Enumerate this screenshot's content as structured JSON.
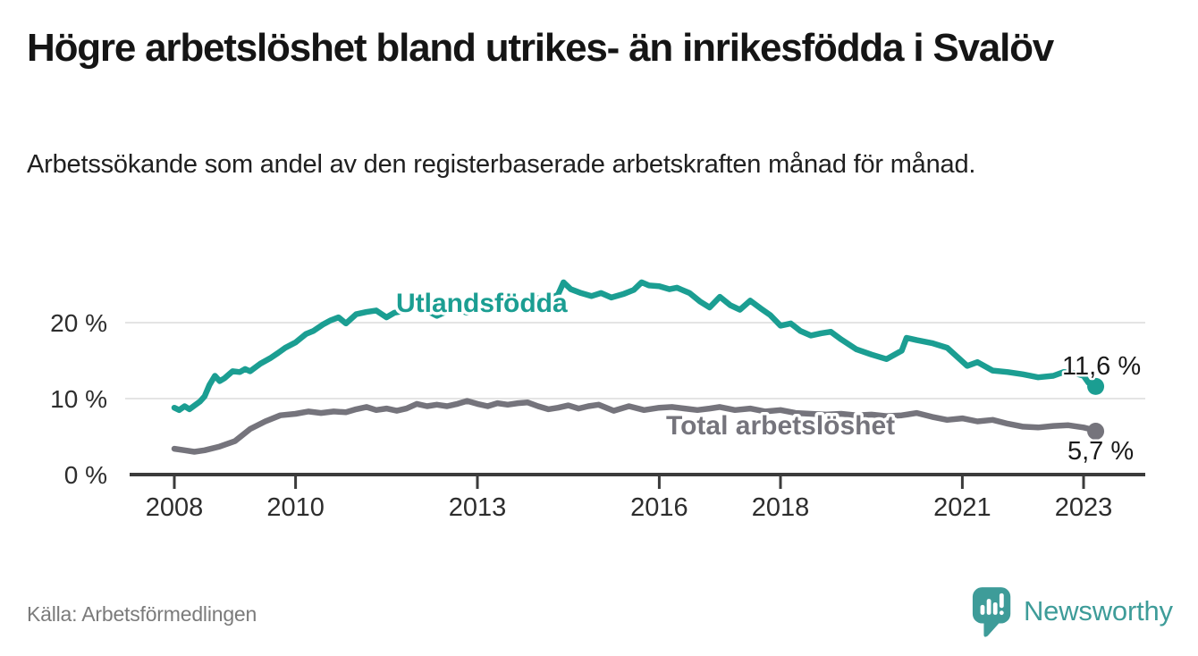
{
  "header": {
    "title": "Högre arbetslöshet bland utrikes- än inrikesfödda i Svalöv",
    "subtitle": "Arbetssökande som andel av den registerbaserade arbetskraften månad för månad."
  },
  "footer": {
    "source": "Källa: Arbetsförmedlingen",
    "brand_name": "Newsworthy",
    "brand_icon": "newsworthy-speech-bubble-bar-chart-icon"
  },
  "colors": {
    "foreign_series": "#1b9e92",
    "total_series": "#75747c",
    "axis": "#3b3b3b",
    "grid": "#e4e4e4",
    "tick_label": "#2d2d2d",
    "value_label": "#1a1a1a",
    "brand": "#3e9c99"
  },
  "chart_data": {
    "type": "line",
    "title": "Högre arbetslöshet bland utrikes- än inrikesfödda i Svalöv",
    "subtitle": "Arbetssökande som andel av den registerbaserade arbetskraften månad för månad.",
    "xlabel": "",
    "ylabel": "",
    "x_range": [
      2007.3,
      2024.0
    ],
    "ylim": [
      0,
      27
    ],
    "grid": "horizontal",
    "legend_position": "inline-labels",
    "x_axis": {
      "ticks": [
        {
          "value": 2008,
          "label": "2008"
        },
        {
          "value": 2010,
          "label": "2010"
        },
        {
          "value": 2013,
          "label": "2013"
        },
        {
          "value": 2016,
          "label": "2016"
        },
        {
          "value": 2018,
          "label": "2018"
        },
        {
          "value": 2021,
          "label": "2021"
        },
        {
          "value": 2023,
          "label": "2023"
        }
      ]
    },
    "y_axis": {
      "ticks": [
        {
          "value": 0,
          "label": "0 %"
        },
        {
          "value": 10,
          "label": "10 %"
        },
        {
          "value": 20,
          "label": "20 %"
        }
      ]
    },
    "series": [
      {
        "id": "total",
        "name": "Total arbetslöshet",
        "color_key": "total_series",
        "end_label": "5,7 %",
        "end_value": 5.7,
        "points": [
          [
            2008.0,
            3.4
          ],
          [
            2008.17,
            3.2
          ],
          [
            2008.33,
            3.0
          ],
          [
            2008.5,
            3.2
          ],
          [
            2008.75,
            3.7
          ],
          [
            2009.0,
            4.4
          ],
          [
            2009.25,
            6.0
          ],
          [
            2009.5,
            7.0
          ],
          [
            2009.75,
            7.8
          ],
          [
            2010.0,
            8.0
          ],
          [
            2010.21,
            8.3
          ],
          [
            2010.42,
            8.1
          ],
          [
            2010.63,
            8.3
          ],
          [
            2010.83,
            8.2
          ],
          [
            2011.0,
            8.6
          ],
          [
            2011.17,
            8.9
          ],
          [
            2011.33,
            8.5
          ],
          [
            2011.5,
            8.7
          ],
          [
            2011.67,
            8.4
          ],
          [
            2011.83,
            8.7
          ],
          [
            2012.0,
            9.3
          ],
          [
            2012.17,
            9.0
          ],
          [
            2012.33,
            9.2
          ],
          [
            2012.5,
            9.0
          ],
          [
            2012.67,
            9.3
          ],
          [
            2012.83,
            9.7
          ],
          [
            2013.0,
            9.3
          ],
          [
            2013.17,
            9.0
          ],
          [
            2013.33,
            9.4
          ],
          [
            2013.5,
            9.2
          ],
          [
            2013.67,
            9.4
          ],
          [
            2013.83,
            9.5
          ],
          [
            2014.0,
            9.0
          ],
          [
            2014.17,
            8.6
          ],
          [
            2014.33,
            8.8
          ],
          [
            2014.5,
            9.1
          ],
          [
            2014.67,
            8.7
          ],
          [
            2014.83,
            9.0
          ],
          [
            2015.0,
            9.2
          ],
          [
            2015.25,
            8.4
          ],
          [
            2015.5,
            9.0
          ],
          [
            2015.75,
            8.5
          ],
          [
            2016.0,
            8.8
          ],
          [
            2016.21,
            8.9
          ],
          [
            2016.42,
            8.7
          ],
          [
            2016.63,
            8.5
          ],
          [
            2016.83,
            8.7
          ],
          [
            2017.0,
            8.9
          ],
          [
            2017.25,
            8.5
          ],
          [
            2017.5,
            8.7
          ],
          [
            2017.75,
            8.3
          ],
          [
            2018.0,
            8.5
          ],
          [
            2018.25,
            8.1
          ],
          [
            2018.5,
            8.0
          ],
          [
            2018.75,
            7.9
          ],
          [
            2019.0,
            8.0
          ],
          [
            2019.25,
            7.8
          ],
          [
            2019.5,
            7.9
          ],
          [
            2019.75,
            7.7
          ],
          [
            2020.0,
            7.8
          ],
          [
            2020.25,
            8.1
          ],
          [
            2020.5,
            7.6
          ],
          [
            2020.75,
            7.2
          ],
          [
            2021.0,
            7.4
          ],
          [
            2021.25,
            7.0
          ],
          [
            2021.5,
            7.2
          ],
          [
            2021.75,
            6.7
          ],
          [
            2022.0,
            6.3
          ],
          [
            2022.25,
            6.2
          ],
          [
            2022.5,
            6.4
          ],
          [
            2022.75,
            6.5
          ],
          [
            2023.0,
            6.2
          ],
          [
            2023.1,
            6.0
          ],
          [
            2023.2,
            5.7
          ]
        ]
      },
      {
        "id": "utlandsfodda",
        "name": "Utlandsfödda",
        "color_key": "foreign_series",
        "end_label": "11,6 %",
        "end_value": 11.6,
        "points": [
          [
            2008.0,
            8.8
          ],
          [
            2008.08,
            8.5
          ],
          [
            2008.17,
            9.0
          ],
          [
            2008.25,
            8.6
          ],
          [
            2008.42,
            9.6
          ],
          [
            2008.5,
            10.3
          ],
          [
            2008.58,
            11.8
          ],
          [
            2008.67,
            13.0
          ],
          [
            2008.75,
            12.3
          ],
          [
            2008.83,
            12.7
          ],
          [
            2008.96,
            13.6
          ],
          [
            2009.08,
            13.5
          ],
          [
            2009.17,
            13.9
          ],
          [
            2009.25,
            13.6
          ],
          [
            2009.42,
            14.6
          ],
          [
            2009.58,
            15.3
          ],
          [
            2009.71,
            16.0
          ],
          [
            2009.83,
            16.7
          ],
          [
            2010.0,
            17.4
          ],
          [
            2010.17,
            18.5
          ],
          [
            2010.29,
            18.9
          ],
          [
            2010.46,
            19.8
          ],
          [
            2010.58,
            20.3
          ],
          [
            2010.71,
            20.7
          ],
          [
            2010.83,
            19.9
          ],
          [
            2011.0,
            21.1
          ],
          [
            2011.17,
            21.4
          ],
          [
            2011.33,
            21.6
          ],
          [
            2011.5,
            20.7
          ],
          [
            2011.63,
            21.3
          ],
          [
            2011.75,
            21.5
          ],
          [
            2011.92,
            22.0
          ],
          [
            2012.04,
            22.2
          ],
          [
            2012.21,
            21.4
          ],
          [
            2012.33,
            20.9
          ],
          [
            2012.5,
            21.5
          ],
          [
            2012.67,
            21.7
          ],
          [
            2012.83,
            21.3
          ],
          [
            2013.0,
            22.3
          ],
          [
            2013.17,
            21.9
          ],
          [
            2013.33,
            22.5
          ],
          [
            2013.5,
            22.8
          ],
          [
            2013.67,
            22.4
          ],
          [
            2013.83,
            22.9
          ],
          [
            2014.0,
            23.2
          ],
          [
            2014.17,
            23.0
          ],
          [
            2014.33,
            23.7
          ],
          [
            2014.42,
            25.3
          ],
          [
            2014.54,
            24.4
          ],
          [
            2014.71,
            23.9
          ],
          [
            2014.88,
            23.5
          ],
          [
            2015.04,
            23.9
          ],
          [
            2015.21,
            23.3
          ],
          [
            2015.42,
            23.8
          ],
          [
            2015.58,
            24.3
          ],
          [
            2015.71,
            25.3
          ],
          [
            2015.83,
            24.9
          ],
          [
            2016.0,
            24.8
          ],
          [
            2016.17,
            24.4
          ],
          [
            2016.29,
            24.6
          ],
          [
            2016.5,
            23.9
          ],
          [
            2016.67,
            22.8
          ],
          [
            2016.83,
            22.0
          ],
          [
            2017.0,
            23.4
          ],
          [
            2017.17,
            22.3
          ],
          [
            2017.33,
            21.7
          ],
          [
            2017.5,
            22.9
          ],
          [
            2017.67,
            21.9
          ],
          [
            2017.83,
            21.0
          ],
          [
            2018.0,
            19.6
          ],
          [
            2018.17,
            19.9
          ],
          [
            2018.33,
            18.9
          ],
          [
            2018.5,
            18.3
          ],
          [
            2018.67,
            18.6
          ],
          [
            2018.83,
            18.8
          ],
          [
            2019.0,
            17.8
          ],
          [
            2019.25,
            16.5
          ],
          [
            2019.5,
            15.8
          ],
          [
            2019.75,
            15.2
          ],
          [
            2020.0,
            16.3
          ],
          [
            2020.08,
            18.0
          ],
          [
            2020.25,
            17.7
          ],
          [
            2020.5,
            17.3
          ],
          [
            2020.75,
            16.7
          ],
          [
            2021.0,
            14.9
          ],
          [
            2021.08,
            14.3
          ],
          [
            2021.25,
            14.8
          ],
          [
            2021.5,
            13.7
          ],
          [
            2021.75,
            13.5
          ],
          [
            2022.0,
            13.2
          ],
          [
            2022.25,
            12.8
          ],
          [
            2022.5,
            13.0
          ],
          [
            2022.67,
            13.5
          ],
          [
            2022.83,
            13.4
          ],
          [
            2023.0,
            13.0
          ],
          [
            2023.08,
            12.1
          ],
          [
            2023.2,
            11.6
          ]
        ]
      }
    ]
  }
}
